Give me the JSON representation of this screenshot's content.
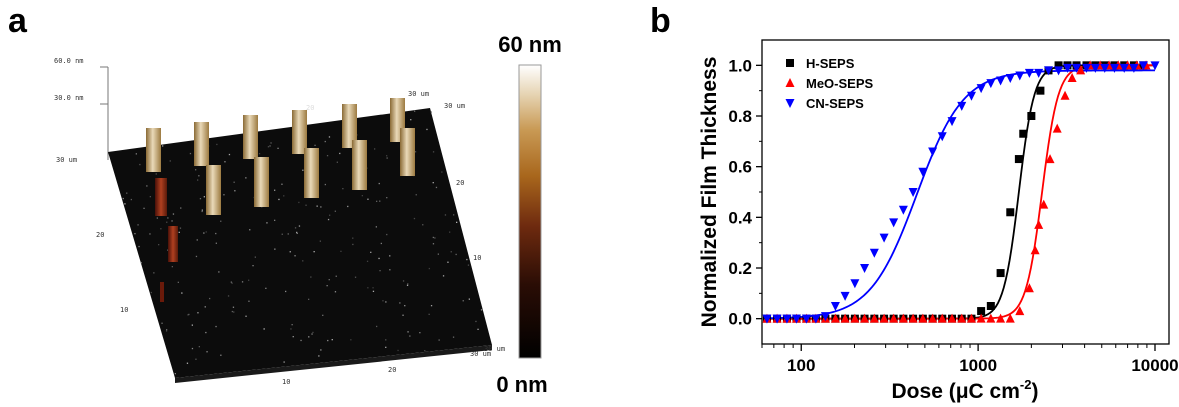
{
  "panel_a": {
    "label": "a",
    "z_ticks": [
      "60.0 nm",
      "30.0 nm"
    ],
    "axis_labels": {
      "y_left_top": "30 um",
      "back_left": "20",
      "back_right": "30 um",
      "right_20": "20",
      "right_10": "10",
      "right_30": "30 um",
      "left_20": "20",
      "left_10": "10",
      "bottom_10": "10",
      "bottom_20": "20",
      "bottom_30": "30 um"
    },
    "colorbar": {
      "max_label": "60 nm",
      "min_label": "0 nm",
      "colors": [
        "#000000",
        "#2a0d05",
        "#6e2a0f",
        "#a8661c",
        "#c99a55",
        "#e6d4b3",
        "#ffffff"
      ]
    }
  },
  "panel_b": {
    "label": "b"
  },
  "chart_data": {
    "type": "scatter",
    "x_scale": "log",
    "xlim": [
      60,
      12000
    ],
    "ylim": [
      -0.1,
      1.1
    ],
    "xlabel_main": "Dose (μC cm",
    "xlabel_sup": "-2",
    "xlabel_end": ")",
    "ylabel": "Normalized Film Thickness",
    "x_ticks": [
      100,
      1000,
      10000
    ],
    "x_tick_labels": [
      "100",
      "1000",
      "10000"
    ],
    "y_ticks": [
      0.0,
      0.2,
      0.4,
      0.6,
      0.8,
      1.0
    ],
    "y_tick_labels": [
      "0.0",
      "0.2",
      "0.4",
      "0.6",
      "0.8",
      "1.0"
    ],
    "legend_position": "top-left",
    "series": [
      {
        "name": "H-SEPS",
        "marker": "square",
        "color": "#000000",
        "x": [
          64,
          73,
          83,
          94,
          107,
          121,
          137,
          156,
          177,
          201,
          228,
          259,
          294,
          333,
          378,
          429,
          487,
          553,
          627,
          712,
          808,
          917,
          1040,
          1180,
          1340,
          1520,
          1700,
          1800,
          2000,
          2250,
          2500,
          2850,
          3200,
          3600,
          4100,
          4600,
          5200,
          5900,
          6700,
          7600,
          8600
        ],
        "y": [
          0.0,
          0.0,
          0.0,
          0.0,
          0.0,
          0.0,
          0.0,
          0.0,
          0.0,
          0.0,
          0.0,
          0.0,
          0.0,
          0.0,
          0.0,
          0.0,
          0.0,
          0.0,
          0.0,
          0.0,
          0.0,
          0.0,
          0.03,
          0.05,
          0.18,
          0.42,
          0.63,
          0.73,
          0.8,
          0.9,
          0.98,
          1.0,
          1.0,
          1.0,
          1.0,
          1.0,
          1.0,
          1.0,
          1.0,
          1.0,
          1.0
        ]
      },
      {
        "name": "MeO-SEPS",
        "marker": "triangle-up",
        "color": "#ff0000",
        "x": [
          64,
          73,
          83,
          94,
          107,
          121,
          137,
          156,
          177,
          201,
          228,
          259,
          294,
          333,
          378,
          429,
          487,
          553,
          627,
          712,
          808,
          917,
          1040,
          1180,
          1340,
          1520,
          1720,
          1950,
          2100,
          2200,
          2350,
          2550,
          2800,
          3100,
          3400,
          3800,
          4300,
          4900,
          5500,
          6200,
          7000,
          7900,
          8900
        ],
        "y": [
          0.0,
          0.0,
          0.0,
          0.0,
          0.0,
          0.0,
          0.0,
          0.0,
          0.0,
          0.0,
          0.0,
          0.0,
          0.0,
          0.0,
          0.0,
          0.0,
          0.0,
          0.0,
          0.0,
          0.0,
          0.0,
          0.0,
          0.0,
          0.0,
          0.0,
          0.0,
          0.03,
          0.12,
          0.27,
          0.37,
          0.45,
          0.63,
          0.75,
          0.88,
          0.95,
          0.98,
          1.0,
          1.0,
          1.0,
          1.0,
          1.0,
          1.0,
          1.0
        ]
      },
      {
        "name": "CN-SEPS",
        "marker": "triangle-down",
        "color": "#0000ff",
        "x": [
          64,
          73,
          83,
          94,
          107,
          121,
          137,
          156,
          177,
          201,
          228,
          259,
          294,
          333,
          378,
          429,
          487,
          553,
          627,
          712,
          808,
          917,
          1040,
          1180,
          1340,
          1520,
          1720,
          1950,
          2200,
          2500,
          2850,
          3200,
          3600,
          4100,
          4600,
          5200,
          5900,
          6700,
          7600,
          8600,
          10000
        ],
        "y": [
          0.0,
          0.0,
          0.0,
          0.0,
          0.0,
          0.0,
          0.01,
          0.05,
          0.09,
          0.14,
          0.2,
          0.26,
          0.32,
          0.38,
          0.43,
          0.5,
          0.58,
          0.66,
          0.72,
          0.78,
          0.84,
          0.88,
          0.91,
          0.93,
          0.94,
          0.95,
          0.96,
          0.97,
          0.97,
          0.98,
          0.98,
          0.99,
          0.99,
          0.99,
          0.99,
          0.99,
          0.99,
          0.99,
          0.99,
          1.0,
          1.0
        ]
      }
    ],
    "fits": [
      {
        "series": "H-SEPS",
        "color": "#000000",
        "x0": 1700,
        "p": 10.0,
        "bottom": 0.0,
        "top": 1.0
      },
      {
        "series": "MeO-SEPS",
        "color": "#ff0000",
        "x0": 2300,
        "p": 9.5,
        "bottom": 0.0,
        "top": 1.0
      },
      {
        "series": "CN-SEPS",
        "color": "#0000ff",
        "x0": 450,
        "p": 3.3,
        "bottom": 0.0,
        "top": 0.98
      }
    ]
  }
}
